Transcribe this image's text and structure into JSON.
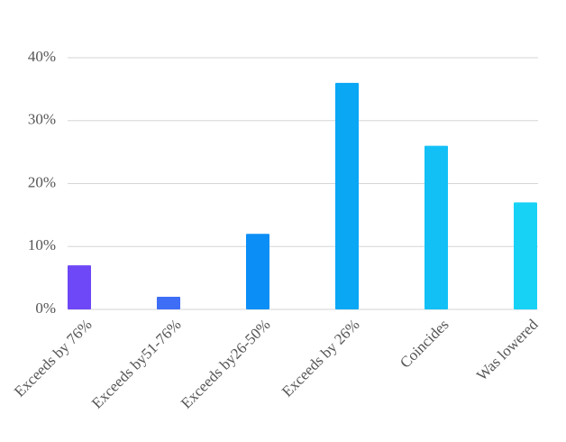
{
  "chart_data": {
    "type": "bar",
    "categories": [
      "Exceeds by 76%",
      "Exceeds by51-76%",
      "Exceeds by26-50%",
      "Exceeds by 26%",
      "Coincides",
      "Was lowered"
    ],
    "values": [
      7,
      2,
      12,
      36,
      26,
      17
    ],
    "colors": [
      "#6e47f6",
      "#3e6df6",
      "#0b8ef6",
      "#0aa7f5",
      "#12c0f6",
      "#17d2f5"
    ],
    "ylim": [
      0,
      40
    ],
    "yticks": [
      {
        "value": 0,
        "label": "0%"
      },
      {
        "value": 10,
        "label": "10%"
      },
      {
        "value": 20,
        "label": "20%"
      },
      {
        "value": 30,
        "label": "30%"
      },
      {
        "value": 40,
        "label": "40%"
      }
    ],
    "grid": true
  }
}
